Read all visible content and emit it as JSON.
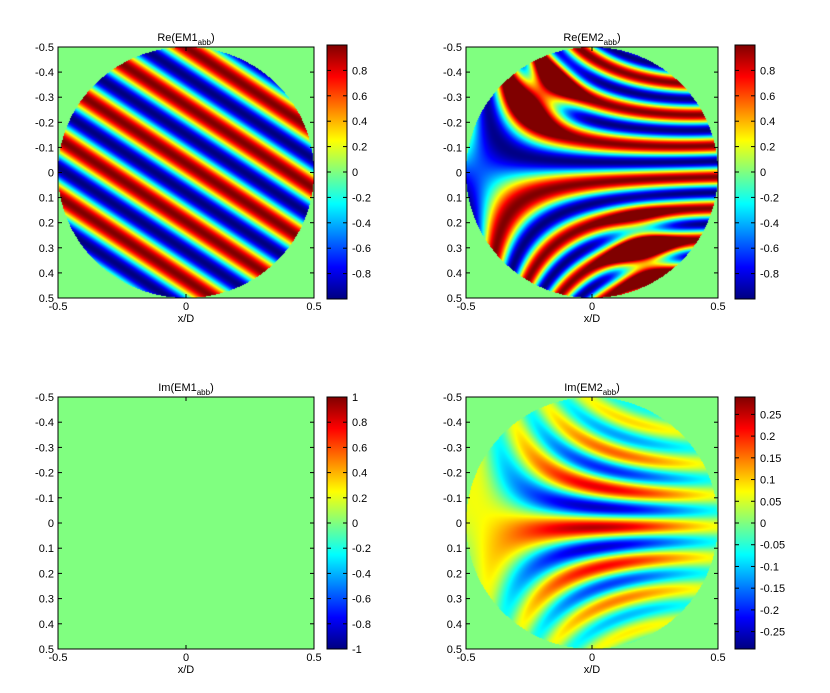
{
  "chart_data": [
    {
      "type": "heatmap",
      "title": "Re(EM1",
      "title_sub": "abb",
      "title_close": ")",
      "xlabel": "x/D",
      "x_ticks": [
        "-0.5",
        "0",
        "0.5"
      ],
      "y_ticks": [
        "-0.5",
        "-0.4",
        "-0.3",
        "-0.2",
        "-0.1",
        "0",
        "0.1",
        "0.2",
        "0.3",
        "0.4",
        "0.5"
      ],
      "xlim": [
        -0.5,
        0.5
      ],
      "ylim": [
        -0.5,
        0.5
      ],
      "clim": [
        -1,
        1
      ],
      "colorbar_ticks": [
        "0.8",
        "0.6",
        "0.4",
        "0.2",
        "0",
        "-0.2",
        "-0.4",
        "-0.6",
        "-0.8"
      ],
      "colormap": "jet",
      "aperture": "circle",
      "aperture_radius": 0.5,
      "pattern": "diagonal-fringes"
    },
    {
      "type": "heatmap",
      "title": "Re(EM2",
      "title_sub": "abb",
      "title_close": ")",
      "xlabel": "x/D",
      "x_ticks": [
        "-0.5",
        "0",
        "0.5"
      ],
      "y_ticks": [
        "-0.5",
        "-0.4",
        "-0.3",
        "-0.2",
        "-0.1",
        "0",
        "0.1",
        "0.2",
        "0.3",
        "0.4",
        "0.5"
      ],
      "xlim": [
        -0.5,
        0.5
      ],
      "ylim": [
        -0.5,
        0.5
      ],
      "clim": [
        -1,
        1
      ],
      "colorbar_ticks": [
        "0.8",
        "0.6",
        "0.4",
        "0.2",
        "0",
        "-0.2",
        "-0.4",
        "-0.6",
        "-0.8"
      ],
      "colormap": "jet",
      "aperture": "circle",
      "aperture_radius": 0.5,
      "pattern": "saddle-fringes"
    },
    {
      "type": "heatmap",
      "title": "Im(EM1",
      "title_sub": "abb",
      "title_close": ")",
      "xlabel": "x/D",
      "x_ticks": [
        "-0.5",
        "0",
        "0.5"
      ],
      "y_ticks": [
        "-0.5",
        "-0.4",
        "-0.3",
        "-0.2",
        "-0.1",
        "0",
        "0.1",
        "0.2",
        "0.3",
        "0.4",
        "0.5"
      ],
      "xlim": [
        -0.5,
        0.5
      ],
      "ylim": [
        -0.5,
        0.5
      ],
      "clim": [
        -1,
        1
      ],
      "colorbar_ticks": [
        "1",
        "0.8",
        "0.6",
        "0.4",
        "0.2",
        "0",
        "-0.2",
        "-0.4",
        "-0.6",
        "-0.8",
        "-1"
      ],
      "colormap": "jet",
      "aperture": "none",
      "pattern": "uniform-zero"
    },
    {
      "type": "heatmap",
      "title": "Im(EM2",
      "title_sub": "abb",
      "title_close": ")",
      "xlabel": "x/D",
      "x_ticks": [
        "-0.5",
        "0",
        "0.5"
      ],
      "y_ticks": [
        "-0.5",
        "-0.4",
        "-0.3",
        "-0.2",
        "-0.1",
        "0",
        "0.1",
        "0.2",
        "0.3",
        "0.4",
        "0.5"
      ],
      "xlim": [
        -0.5,
        0.5
      ],
      "ylim": [
        -0.5,
        0.5
      ],
      "clim": [
        -0.29,
        0.29
      ],
      "colorbar_ticks": [
        "0.25",
        "0.2",
        "0.15",
        "0.1",
        "0.05",
        "0",
        "-0.05",
        "-0.1",
        "-0.15",
        "-0.2",
        "-0.25"
      ],
      "colormap": "jet",
      "aperture": "circle",
      "aperture_radius": 0.5,
      "pattern": "saddle-fringes-imag"
    }
  ]
}
